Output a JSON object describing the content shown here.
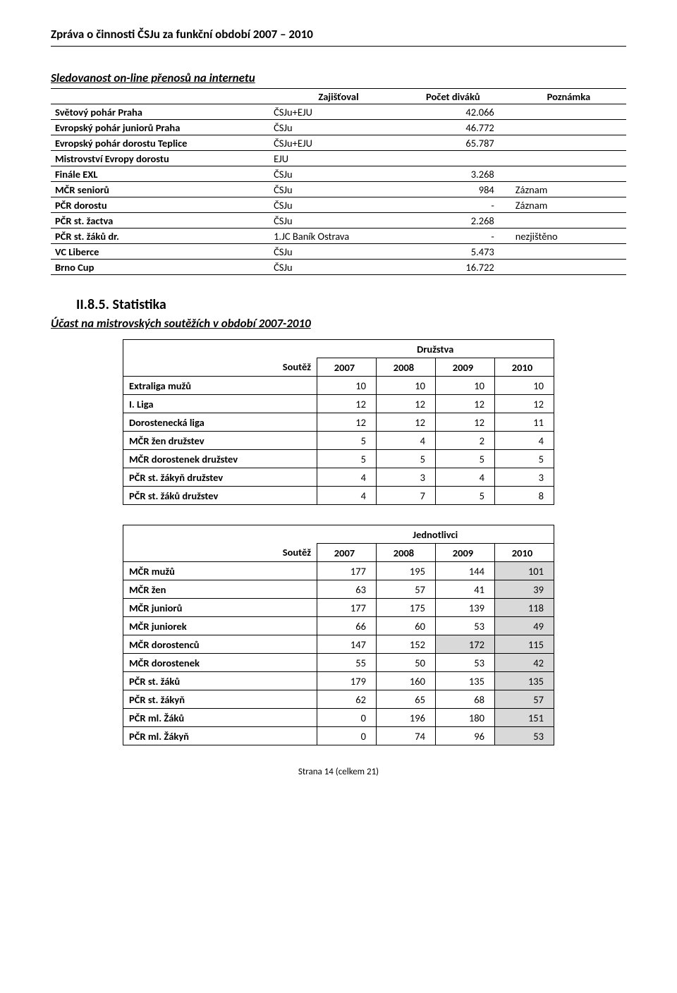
{
  "header": "Zpráva o činnosti ČSJu za funkční období 2007 – 2010",
  "section1": {
    "title": "Sledovanost on-line přenosů na internetu",
    "columns": [
      "",
      "Zajišťoval",
      "Počet diváků",
      "Poznámka"
    ],
    "rows": [
      {
        "name": "Světový pohár Praha",
        "org": "ČSJu+EJU",
        "views": "42.066",
        "note": ""
      },
      {
        "name": "Evropský pohár juniorů Praha",
        "org": "ČSJu",
        "views": "46.772",
        "note": ""
      },
      {
        "name": "Evropský pohár dorostu Teplice",
        "org": "ČSJu+EJU",
        "views": "65.787",
        "note": ""
      },
      {
        "name": "Mistrovství Evropy dorostu",
        "org": "EJU",
        "views": "",
        "note": ""
      },
      {
        "name": "Finále EXL",
        "org": "ČSJu",
        "views": "3.268",
        "note": ""
      },
      {
        "name": "MČR seniorů",
        "org": "ČSJu",
        "views": "984",
        "note": "Záznam"
      },
      {
        "name": "PČR dorostu",
        "org": "ČSJu",
        "views": "-",
        "note": "Záznam"
      },
      {
        "name": "PČR st. žactva",
        "org": "ČSJu",
        "views": "2.268",
        "note": ""
      },
      {
        "name": "PČR st. žáků dr.",
        "org": "1.JC Baník Ostrava",
        "views": "-",
        "note": "nezjištěno"
      },
      {
        "name": "VC Liberce",
        "org": "ČSJu",
        "views": "5.473",
        "note": ""
      },
      {
        "name": "Brno Cup",
        "org": "ČSJu",
        "views": "16.722",
        "note": ""
      }
    ]
  },
  "stats": {
    "heading": "II.8.5. Statistika",
    "subtitle": "Účast na mistrovských soutěžích v období 2007-2010"
  },
  "table_d": {
    "section_label": "Družstva",
    "row_label": "Soutěž",
    "years": [
      "2007",
      "2008",
      "2009",
      "2010"
    ],
    "rows": [
      {
        "name": "Extraliga mužů",
        "v": [
          "10",
          "10",
          "10",
          "10"
        ],
        "hl": []
      },
      {
        "name": "I. Liga",
        "v": [
          "12",
          "12",
          "12",
          "12"
        ],
        "hl": []
      },
      {
        "name": "Dorostenecká liga",
        "v": [
          "12",
          "12",
          "12",
          "11"
        ],
        "hl": []
      },
      {
        "name": "MČR žen družstev",
        "v": [
          "5",
          "4",
          "2",
          "4"
        ],
        "hl": []
      },
      {
        "name": "MČR dorostenek družstev",
        "v": [
          "5",
          "5",
          "5",
          "5"
        ],
        "hl": []
      },
      {
        "name": "PČR st. žákyň družstev",
        "v": [
          "4",
          "3",
          "4",
          "3"
        ],
        "hl": []
      },
      {
        "name": "PČR st. žáků družstev",
        "v": [
          "4",
          "7",
          "5",
          "8"
        ],
        "hl": []
      }
    ]
  },
  "table_j": {
    "section_label": "Jednotlivci",
    "row_label": "Soutěž",
    "years": [
      "2007",
      "2008",
      "2009",
      "2010"
    ],
    "rows": [
      {
        "name": "MČR mužů",
        "v": [
          "177",
          "195",
          "144",
          "101"
        ],
        "hl": [
          3
        ]
      },
      {
        "name": "MČR žen",
        "v": [
          "63",
          "57",
          "41",
          "39"
        ],
        "hl": [
          3
        ]
      },
      {
        "name": "MČR juniorů",
        "v": [
          "177",
          "175",
          "139",
          "118"
        ],
        "hl": [
          3
        ]
      },
      {
        "name": "MČR juniorek",
        "v": [
          "66",
          "60",
          "53",
          "49"
        ],
        "hl": [
          3
        ]
      },
      {
        "name": "MČR dorostenců",
        "v": [
          "147",
          "152",
          "172",
          "115"
        ],
        "hl": [
          2,
          3
        ]
      },
      {
        "name": "MČR dorostenek",
        "v": [
          "55",
          "50",
          "53",
          "42"
        ],
        "hl": [
          3
        ]
      },
      {
        "name": "PČR st. žáků",
        "v": [
          "179",
          "160",
          "135",
          "135"
        ],
        "hl": [
          3
        ]
      },
      {
        "name": "PČR st. žákyň",
        "v": [
          "62",
          "65",
          "68",
          "57"
        ],
        "hl": [
          3
        ]
      },
      {
        "name": "PČR ml. Žáků",
        "v": [
          "0",
          "196",
          "180",
          "151"
        ],
        "hl": [
          3
        ]
      },
      {
        "name": "PČR ml. Žákyň",
        "v": [
          "0",
          "74",
          "96",
          "53"
        ],
        "hl": [
          3
        ]
      }
    ]
  },
  "footer": "Strana 14 (celkem 21)"
}
